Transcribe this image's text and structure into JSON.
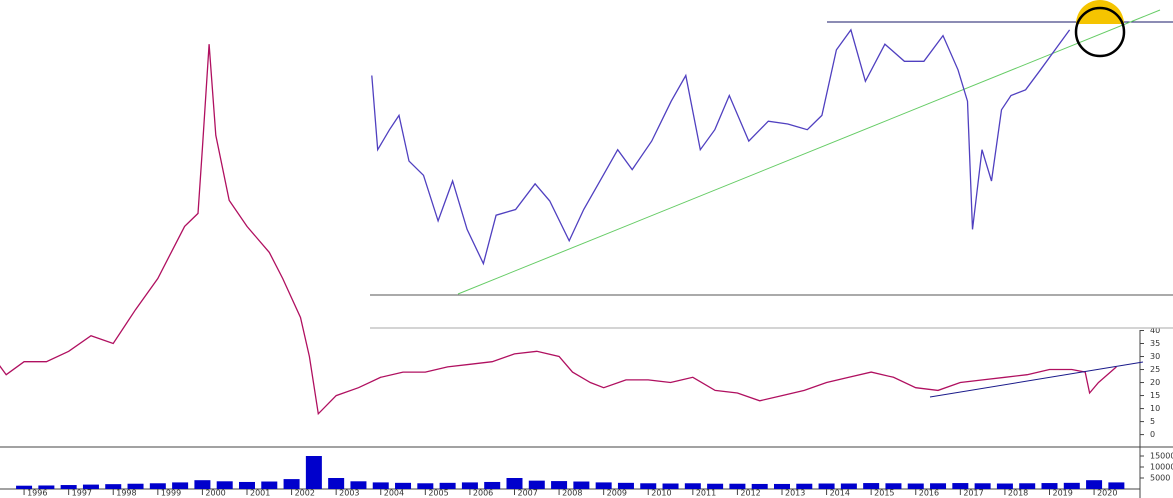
{
  "chart_data": [
    {
      "type": "line",
      "color": "#b01060",
      "x": [
        1995.3,
        1995.6,
        1996.0,
        1996.5,
        1997.0,
        1997.5,
        1998.0,
        1998.5,
        1999.0,
        1999.3,
        1999.6,
        1999.9,
        2000.0,
        2000.15,
        2000.3,
        2000.6,
        2001.0,
        2001.5,
        2001.8,
        2002.2,
        2002.4,
        2002.6,
        2003.0,
        2003.5,
        2004.0,
        2004.5,
        2005.0,
        2005.5,
        2006.0,
        2006.5,
        2007.0,
        2007.5,
        2008.0,
        2008.3,
        2008.7,
        2009.0,
        2009.5,
        2010.0,
        2010.5,
        2011.0,
        2011.5,
        2012.0,
        2012.5,
        2013.0,
        2013.5,
        2014.0,
        2014.5,
        2015.0,
        2015.5,
        2016.0,
        2016.5,
        2017.0,
        2017.5,
        2018.0,
        2018.5,
        2019.0,
        2019.5,
        2019.8,
        2019.9,
        2020.1,
        2020.5
      ],
      "values": [
        30,
        23,
        28,
        28,
        32,
        38,
        35,
        48,
        60,
        70,
        80,
        85,
        110,
        150,
        115,
        90,
        80,
        70,
        60,
        45,
        30,
        8,
        15,
        18,
        22,
        24,
        24,
        26,
        27,
        28,
        31,
        32,
        30,
        24,
        20,
        18,
        21,
        21,
        20,
        22,
        17,
        16,
        13,
        15,
        17,
        20,
        22,
        24,
        22,
        18,
        17,
        20,
        21,
        22,
        23,
        25,
        25,
        24,
        16,
        20,
        26
      ],
      "xlim": [
        1995.46,
        2021.03
      ],
      "ylim": [
        -4,
        167
      ],
      "yticks": [
        0,
        5,
        10,
        15,
        20,
        25,
        30,
        35,
        40
      ],
      "xticks": [
        1996,
        1997,
        1998,
        1999,
        2000,
        2001,
        2002,
        2003,
        2004,
        2005,
        2006,
        2007,
        2008,
        2009,
        2010,
        2011,
        2012,
        2013,
        2014,
        2015,
        2016,
        2017,
        2018,
        2019,
        2020
      ]
    },
    {
      "type": "bar",
      "color": "#0000cc",
      "x": [
        1996.0,
        1996.5,
        1997.0,
        1997.5,
        1998.0,
        1998.5,
        1999.0,
        1999.5,
        2000.0,
        2000.5,
        2001.0,
        2001.5,
        2002.0,
        2002.5,
        2003.0,
        2003.5,
        2004.0,
        2004.5,
        2005.0,
        2005.5,
        2006.0,
        2006.5,
        2007.0,
        2007.5,
        2008.0,
        2008.5,
        2009.0,
        2009.5,
        2010.0,
        2010.5,
        2011.0,
        2011.5,
        2012.0,
        2012.5,
        2013.0,
        2013.5,
        2014.0,
        2014.5,
        2015.0,
        2015.5,
        2016.0,
        2016.5,
        2017.0,
        2017.5,
        2018.0,
        2018.5,
        2019.0,
        2019.5,
        2020.0,
        2020.5
      ],
      "values": [
        1500,
        1600,
        1800,
        2000,
        2200,
        2400,
        2600,
        3000,
        4000,
        3500,
        3200,
        3400,
        4500,
        15000,
        5000,
        3500,
        3000,
        2800,
        2600,
        2800,
        3000,
        3200,
        5000,
        3800,
        3600,
        3400,
        3000,
        2800,
        2600,
        2500,
        2600,
        2400,
        2400,
        2300,
        2300,
        2400,
        2500,
        2500,
        2700,
        2600,
        2500,
        2600,
        2700,
        2600,
        2500,
        2600,
        2700,
        2800,
        4000,
        3000
      ],
      "xlim": [
        1995.46,
        2021.03
      ],
      "ylim": [
        0,
        18000
      ],
      "yticks": [
        5000,
        10000,
        15000
      ]
    },
    {
      "type": "line",
      "color": "#5040c0",
      "x": [
        2004.04,
        2004.17,
        2004.43,
        2004.64,
        2004.86,
        2005.18,
        2005.5,
        2005.82,
        2006.14,
        2006.5,
        2006.78,
        2007.21,
        2007.64,
        2007.96,
        2008.39,
        2008.71,
        2009.14,
        2009.46,
        2009.78,
        2010.21,
        2010.64,
        2010.96,
        2011.28,
        2011.6,
        2011.92,
        2012.35,
        2012.78,
        2013.21,
        2013.64,
        2013.96,
        2014.28,
        2014.6,
        2014.92,
        2015.35,
        2015.78,
        2016.21,
        2016.63,
        2016.96,
        2017.17,
        2017.28,
        2017.49,
        2017.7,
        2017.92,
        2018.13,
        2018.45,
        2018.78,
        2019.1,
        2019.42
      ],
      "values": [
        77,
        51,
        58,
        63,
        47,
        42,
        26,
        40,
        23,
        11,
        28,
        30,
        39,
        33,
        19,
        30,
        42,
        51,
        44,
        54,
        68,
        77,
        51,
        58,
        70,
        54,
        61,
        60,
        58,
        63,
        86,
        93,
        75,
        88,
        82,
        82,
        91,
        79,
        68,
        23,
        51,
        40,
        65,
        70,
        72,
        79,
        86,
        93
      ],
      "xlim": [
        2004,
        2021.7
      ],
      "ylim": [
        0,
        100
      ]
    }
  ]
}
